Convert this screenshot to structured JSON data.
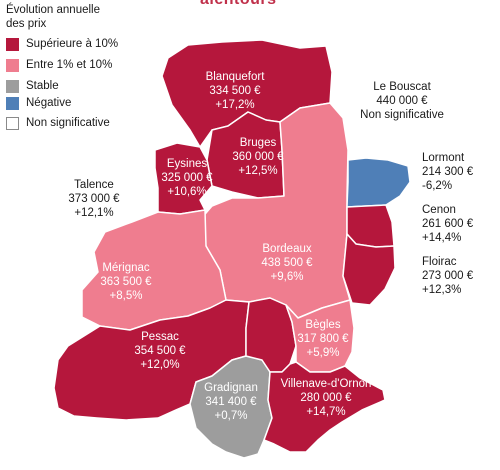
{
  "top_title_fragment": "alentours",
  "legend": {
    "title_line1": "Évolution annuelle",
    "title_line2": "des prix",
    "items": [
      {
        "label": "Supérieure à 10%",
        "color": "#b5173c"
      },
      {
        "label": "Entre 1% et 10%",
        "color": "#ef7d8f"
      },
      {
        "label": "Stable",
        "color": "#9d9d9d"
      },
      {
        "label": "Négative",
        "color": "#4f7fb7"
      },
      {
        "label": "Non significative",
        "color": "#ffffff"
      }
    ]
  },
  "communes": [
    {
      "key": "blanquefort",
      "name": "Blanquefort",
      "price": "334 500 €",
      "change": "+17,2%",
      "category": "Supérieure à 10%"
    },
    {
      "key": "bruges",
      "name": "Bruges",
      "price": "360 000 €",
      "change": "+12,5%",
      "category": "Supérieure à 10%"
    },
    {
      "key": "eysines",
      "name": "Eysines",
      "price": "325 000 €",
      "change": "+10,6%",
      "category": "Supérieure à 10%"
    },
    {
      "key": "le_bouscat",
      "name": "Le Bouscat",
      "price": "440 000 €",
      "change": "Non significative",
      "category": "Non significative"
    },
    {
      "key": "talence",
      "name": "Talence",
      "price": "373 000 €",
      "change": "+12,1%",
      "category": "Supérieure à 10%"
    },
    {
      "key": "lormont",
      "name": "Lormont",
      "price": "214 300 €",
      "change": "-6,2%",
      "category": "Négative"
    },
    {
      "key": "cenon",
      "name": "Cenon",
      "price": "261 600 €",
      "change": "+14,4%",
      "category": "Supérieure à 10%"
    },
    {
      "key": "floirac",
      "name": "Floirac",
      "price": "273 000 €",
      "change": "+12,3%",
      "category": "Supérieure à 10%"
    },
    {
      "key": "bordeaux",
      "name": "Bordeaux",
      "price": "438 500 €",
      "change": "+9,6%",
      "category": "Entre 1% et 10%"
    },
    {
      "key": "merignac",
      "name": "Mérignac",
      "price": "363 500 €",
      "change": "+8,5%",
      "category": "Entre 1% et 10%"
    },
    {
      "key": "pessac",
      "name": "Pessac",
      "price": "354 500 €",
      "change": "+12,0%",
      "category": "Supérieure à 10%"
    },
    {
      "key": "begles",
      "name": "Bègles",
      "price": "317 800 €",
      "change": "+5,9%",
      "category": "Entre 1% et 10%"
    },
    {
      "key": "gradignan",
      "name": "Gradignan",
      "price": "341 400 €",
      "change": "+0,7%",
      "category": "Stable"
    },
    {
      "key": "villenave",
      "name": "Villenave-d'Ornon",
      "price": "280 000 €",
      "change": "+14,7%",
      "category": "Supérieure à 10%"
    }
  ]
}
